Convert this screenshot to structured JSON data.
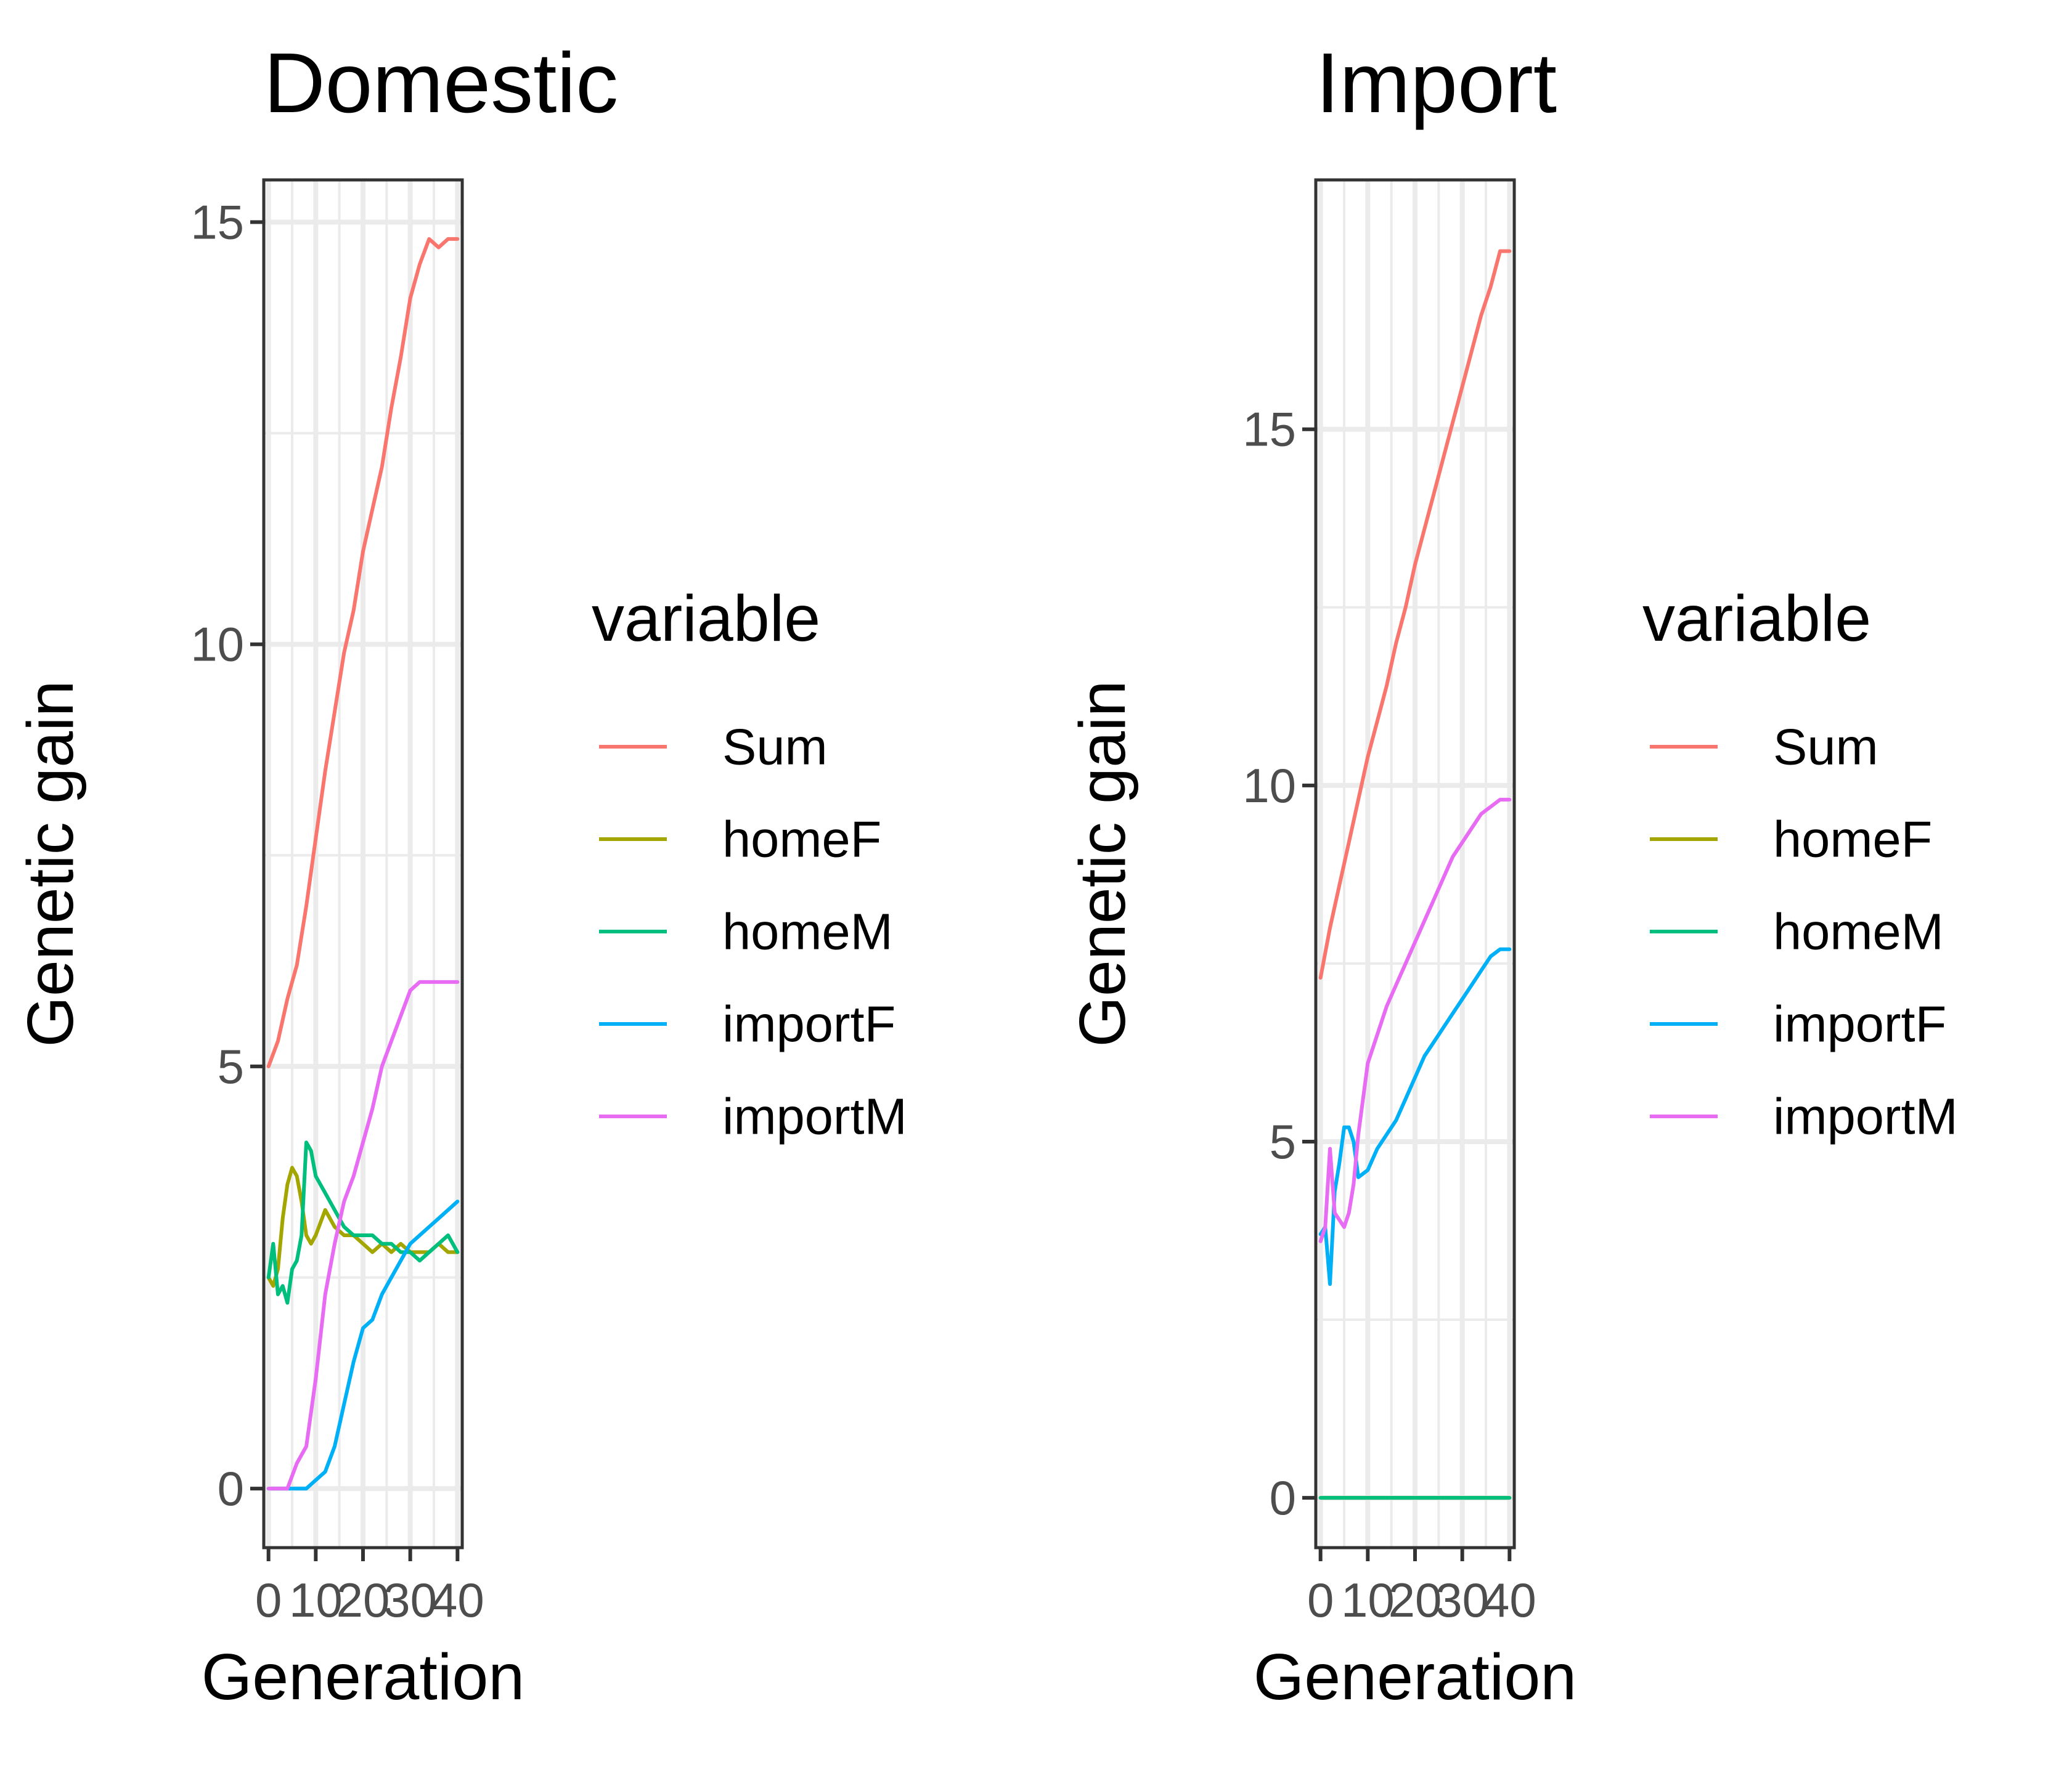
{
  "chart_data": [
    {
      "type": "line",
      "title": "Domestic",
      "xlabel": "Generation",
      "ylabel": "Genetic gain",
      "xlim": [
        -1,
        41
      ],
      "ylim": [
        -0.7,
        15.5
      ],
      "x_ticks": [
        0,
        10,
        20,
        30,
        40
      ],
      "x_tick_labels": [
        "0",
        "10",
        "20",
        "30",
        "40"
      ],
      "y_ticks": [
        0,
        5,
        10,
        15
      ],
      "y_tick_labels": [
        "0",
        "5",
        "10",
        "15"
      ],
      "grid": true,
      "legend_title": "variable",
      "legend_position": "right",
      "series": [
        {
          "name": "Sum",
          "color": "#F8766D",
          "x": [
            0,
            2,
            4,
            6,
            8,
            10,
            12,
            14,
            16,
            18,
            20,
            22,
            24,
            26,
            28,
            30,
            32,
            34,
            36,
            38,
            40
          ],
          "y": [
            5.0,
            5.3,
            5.8,
            6.2,
            6.9,
            7.7,
            8.5,
            9.2,
            9.9,
            10.4,
            11.1,
            11.6,
            12.1,
            12.8,
            13.4,
            14.1,
            14.5,
            14.8,
            14.7,
            14.8,
            14.8
          ]
        },
        {
          "name": "homeF",
          "color": "#A3A500",
          "x": [
            0,
            1,
            2,
            3,
            4,
            5,
            6,
            7,
            8,
            9,
            10,
            12,
            14,
            16,
            18,
            20,
            22,
            24,
            26,
            28,
            30,
            32,
            34,
            36,
            38,
            40
          ],
          "y": [
            2.5,
            2.4,
            2.6,
            3.2,
            3.6,
            3.8,
            3.7,
            3.4,
            3.0,
            2.9,
            3.0,
            3.3,
            3.1,
            3.0,
            3.0,
            2.9,
            2.8,
            2.9,
            2.8,
            2.9,
            2.8,
            2.8,
            2.8,
            2.9,
            2.8,
            2.8
          ]
        },
        {
          "name": "homeM",
          "color": "#00BF7D",
          "x": [
            0,
            1,
            2,
            3,
            4,
            5,
            6,
            7,
            8,
            9,
            10,
            11,
            12,
            14,
            16,
            18,
            20,
            22,
            24,
            26,
            28,
            30,
            32,
            34,
            36,
            38,
            40
          ],
          "y": [
            2.5,
            2.9,
            2.3,
            2.4,
            2.2,
            2.6,
            2.7,
            3.0,
            4.1,
            4.0,
            3.7,
            3.6,
            3.5,
            3.3,
            3.1,
            3.0,
            3.0,
            3.0,
            2.9,
            2.9,
            2.8,
            2.8,
            2.7,
            2.8,
            2.9,
            3.0,
            2.8
          ]
        },
        {
          "name": "importF",
          "color": "#00B0F6",
          "x": [
            0,
            2,
            4,
            6,
            8,
            10,
            12,
            14,
            16,
            18,
            20,
            22,
            24,
            26,
            28,
            30,
            32,
            34,
            36,
            38,
            40
          ],
          "y": [
            0,
            0,
            0,
            0,
            0,
            0.1,
            0.2,
            0.5,
            1.0,
            1.5,
            1.9,
            2.0,
            2.3,
            2.5,
            2.7,
            2.9,
            3.0,
            3.1,
            3.2,
            3.3,
            3.4
          ]
        },
        {
          "name": "importM",
          "color": "#E76BF3",
          "x": [
            0,
            2,
            4,
            6,
            8,
            10,
            12,
            14,
            16,
            18,
            20,
            22,
            24,
            26,
            28,
            30,
            32,
            34,
            36,
            38,
            40
          ],
          "y": [
            0,
            0,
            0,
            0.3,
            0.5,
            1.3,
            2.3,
            2.9,
            3.4,
            3.7,
            4.1,
            4.5,
            5.0,
            5.3,
            5.6,
            5.9,
            6.0,
            6.0,
            6.0,
            6.0,
            6.0
          ]
        }
      ]
    },
    {
      "type": "line",
      "title": "Import",
      "xlabel": "Generation",
      "ylabel": "Genetic gain",
      "xlim": [
        -1,
        41
      ],
      "ylim": [
        -0.7,
        18.5
      ],
      "x_ticks": [
        0,
        10,
        20,
        30,
        40
      ],
      "x_tick_labels": [
        "0",
        "10",
        "20",
        "30",
        "40"
      ],
      "y_ticks": [
        0,
        5,
        10,
        15
      ],
      "y_tick_labels": [
        "0",
        "5",
        "10",
        "15"
      ],
      "grid": true,
      "legend_title": "variable",
      "legend_position": "right",
      "series": [
        {
          "name": "Sum",
          "color": "#F8766D",
          "x": [
            0,
            2,
            4,
            6,
            8,
            10,
            12,
            14,
            16,
            18,
            20,
            22,
            24,
            26,
            28,
            30,
            32,
            34,
            36,
            38,
            40
          ],
          "y": [
            7.3,
            8.0,
            8.6,
            9.2,
            9.8,
            10.4,
            10.9,
            11.4,
            12.0,
            12.5,
            13.1,
            13.6,
            14.1,
            14.6,
            15.1,
            15.6,
            16.1,
            16.6,
            17.0,
            17.5,
            17.5
          ]
        },
        {
          "name": "homeF",
          "color": "#A3A500",
          "x": [
            0,
            40
          ],
          "y": [
            0,
            0
          ]
        },
        {
          "name": "homeM",
          "color": "#00BF7D",
          "x": [
            0,
            40
          ],
          "y": [
            0,
            0
          ]
        },
        {
          "name": "importF",
          "color": "#00B0F6",
          "x": [
            0,
            1,
            2,
            3,
            4,
            5,
            6,
            7,
            8,
            10,
            12,
            14,
            16,
            18,
            20,
            22,
            24,
            26,
            28,
            30,
            32,
            34,
            36,
            38,
            40
          ],
          "y": [
            3.7,
            3.8,
            3.0,
            4.3,
            4.7,
            5.2,
            5.2,
            5.0,
            4.5,
            4.6,
            4.9,
            5.1,
            5.3,
            5.6,
            5.9,
            6.2,
            6.4,
            6.6,
            6.8,
            7.0,
            7.2,
            7.4,
            7.6,
            7.7,
            7.7
          ]
        },
        {
          "name": "importM",
          "color": "#E76BF3",
          "x": [
            0,
            1,
            2,
            3,
            4,
            5,
            6,
            7,
            8,
            10,
            12,
            14,
            16,
            18,
            20,
            22,
            24,
            26,
            28,
            30,
            32,
            34,
            36,
            38,
            40
          ],
          "y": [
            3.6,
            3.8,
            4.9,
            4.0,
            3.9,
            3.8,
            4.0,
            4.4,
            5.1,
            6.1,
            6.5,
            6.9,
            7.2,
            7.5,
            7.8,
            8.1,
            8.4,
            8.7,
            9.0,
            9.2,
            9.4,
            9.6,
            9.7,
            9.8,
            9.8
          ]
        }
      ]
    }
  ]
}
